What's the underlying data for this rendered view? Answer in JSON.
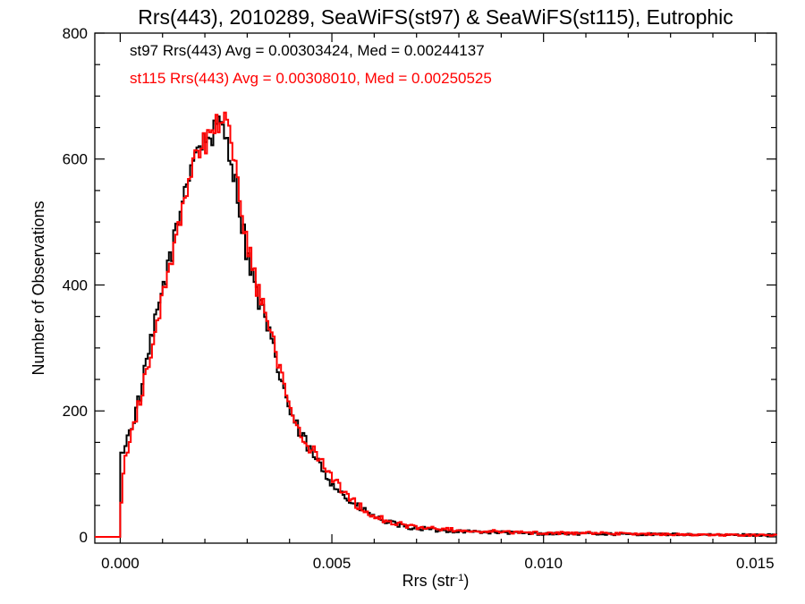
{
  "chart_data": {
    "type": "line",
    "title": "Rrs(443), 2010289, SeaWiFS(st97) & SeaWiFS(st115), Eutrophic",
    "xlabel": "Rrs (str",
    "xlabel_sup": "-1",
    "xlabel_end": ")",
    "ylabel": "Number of Observations",
    "xlim": [
      -0.0006,
      0.0155
    ],
    "ylim": [
      -10,
      800
    ],
    "xticks": [
      0.0,
      0.005,
      0.01,
      0.015
    ],
    "xtick_labels": [
      "0.000",
      "0.005",
      "0.010",
      "0.015"
    ],
    "yticks": [
      0,
      200,
      400,
      600,
      800
    ],
    "ytick_labels": [
      "0",
      "200",
      "400",
      "600",
      "800"
    ],
    "legend_position": "top-left",
    "grid": false,
    "series": [
      {
        "name": "st97",
        "color": "#000000",
        "annotation": "st97 Rrs(443) Avg = 0.00303424, Med = 0.00244137",
        "x": [
          -0.0006,
          -0.0001,
          0.0,
          0.0001,
          0.0002,
          0.0003,
          0.0004,
          0.0005,
          0.0006,
          0.0007,
          0.0008,
          0.0009,
          0.001,
          0.0011,
          0.0012,
          0.0013,
          0.0014,
          0.0015,
          0.0016,
          0.0017,
          0.0018,
          0.0019,
          0.002,
          0.0021,
          0.0022,
          0.0023,
          0.0024,
          0.0025,
          0.0026,
          0.0027,
          0.0028,
          0.0029,
          0.003,
          0.0031,
          0.0032,
          0.0033,
          0.0034,
          0.0035,
          0.0036,
          0.0037,
          0.0038,
          0.0039,
          0.004,
          0.0041,
          0.0042,
          0.0043,
          0.0044,
          0.0045,
          0.0046,
          0.0047,
          0.0048,
          0.0049,
          0.005,
          0.0051,
          0.0052,
          0.0053,
          0.0054,
          0.0055,
          0.0056,
          0.0057,
          0.0058,
          0.0059,
          0.006,
          0.0062,
          0.0064,
          0.0066,
          0.0068,
          0.007,
          0.0072,
          0.0074,
          0.0076,
          0.0078,
          0.008,
          0.0085,
          0.009,
          0.0095,
          0.01,
          0.011,
          0.012,
          0.013,
          0.014,
          0.015
        ],
        "y": [
          0,
          0,
          120,
          148,
          160,
          185,
          205,
          235,
          265,
          300,
          330,
          360,
          395,
          420,
          450,
          475,
          510,
          545,
          575,
          600,
          615,
          625,
          630,
          635,
          640,
          648,
          652,
          640,
          610,
          570,
          530,
          490,
          450,
          420,
          395,
          370,
          350,
          325,
          300,
          275,
          250,
          230,
          200,
          185,
          170,
          158,
          148,
          135,
          125,
          115,
          105,
          95,
          88,
          80,
          72,
          64,
          58,
          52,
          48,
          45,
          40,
          36,
          32,
          26,
          22,
          18,
          15,
          14,
          13,
          11,
          10,
          10,
          9,
          8,
          7,
          6,
          5,
          5,
          4,
          4,
          3,
          3
        ]
      },
      {
        "name": "st115",
        "color": "#ff0000",
        "annotation": "st115 Rrs(443) Avg = 0.00308010, Med = 0.00250525",
        "x": [
          -0.0006,
          -0.0001,
          0.0,
          0.0001,
          0.0002,
          0.0003,
          0.0004,
          0.0005,
          0.0006,
          0.0007,
          0.0008,
          0.0009,
          0.001,
          0.0011,
          0.0012,
          0.0013,
          0.0014,
          0.0015,
          0.0016,
          0.0017,
          0.0018,
          0.0019,
          0.002,
          0.0021,
          0.0022,
          0.0023,
          0.0024,
          0.0025,
          0.0026,
          0.0027,
          0.0028,
          0.0029,
          0.003,
          0.0031,
          0.0032,
          0.0033,
          0.0034,
          0.0035,
          0.0036,
          0.0037,
          0.0038,
          0.0039,
          0.004,
          0.0041,
          0.0042,
          0.0043,
          0.0044,
          0.0045,
          0.0046,
          0.0047,
          0.0048,
          0.0049,
          0.005,
          0.0051,
          0.0052,
          0.0053,
          0.0054,
          0.0055,
          0.0056,
          0.0057,
          0.0058,
          0.0059,
          0.006,
          0.0062,
          0.0064,
          0.0066,
          0.0068,
          0.007,
          0.0072,
          0.0074,
          0.0076,
          0.0078,
          0.008,
          0.0085,
          0.009,
          0.0095,
          0.01,
          0.011,
          0.012,
          0.013,
          0.014,
          0.015
        ],
        "y": [
          0,
          0,
          40,
          120,
          150,
          175,
          200,
          225,
          255,
          285,
          320,
          355,
          385,
          410,
          440,
          470,
          500,
          540,
          570,
          590,
          610,
          620,
          628,
          638,
          645,
          655,
          660,
          648,
          625,
          590,
          545,
          505,
          470,
          435,
          405,
          380,
          360,
          335,
          310,
          285,
          258,
          238,
          212,
          195,
          178,
          165,
          152,
          142,
          132,
          122,
          112,
          102,
          93,
          85,
          77,
          69,
          62,
          56,
          51,
          47,
          43,
          38,
          34,
          28,
          24,
          20,
          17,
          15,
          14,
          13,
          12,
          12,
          10,
          9,
          8,
          7,
          6,
          6,
          5,
          4,
          3,
          3
        ]
      }
    ]
  }
}
